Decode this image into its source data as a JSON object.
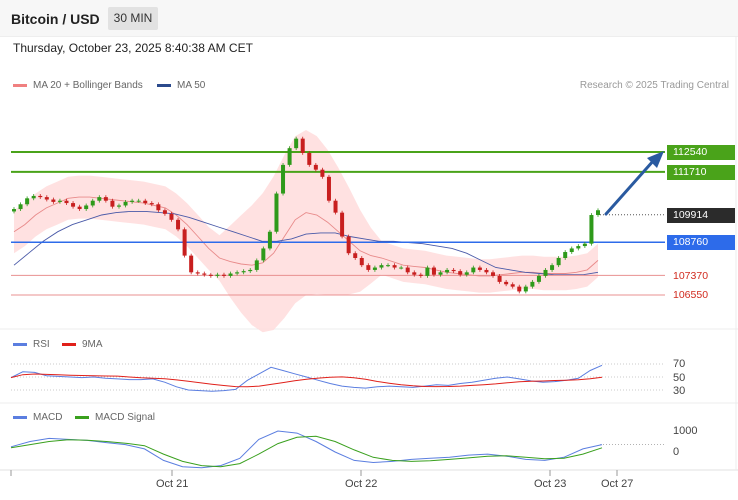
{
  "header": {
    "instrument": "Bitcoin / USD",
    "timeframe": "30 MIN",
    "datetime": "Thursday, October 23, 2025 8:40:38 AM CET"
  },
  "legend": {
    "ma20": "MA 20 + Bollinger Bands",
    "ma50": "MA 50",
    "research": "Research © 2025 Trading Central",
    "rsi": "RSI",
    "rsi_ma": "9MA",
    "macd": "MACD",
    "macd_signal": "MACD Signal"
  },
  "colors": {
    "bollinger_fill": "#ffdcdc",
    "ma20": "#e88a8a",
    "ma50": "#4a5aa8",
    "bull": "#2e9a1a",
    "bear": "#c81f1f",
    "resistance": "#4aa31a",
    "pivot": "#2d6bea",
    "support": "#e89090",
    "current": "#2b2b2b",
    "arrow": "#2a5aa0",
    "rsi": "#5b7ee0",
    "rsi_ma": "#e0201a",
    "macd": "#5b7ee0",
    "macd_signal": "#3aa01e"
  },
  "levels": {
    "r2": "112540",
    "r1": "111710",
    "current": "109914",
    "pivot": "108760",
    "s1": "107370",
    "s2": "106550"
  },
  "rsi_levels": [
    "70",
    "50",
    "30"
  ],
  "macd_levels": [
    "1000",
    "0"
  ],
  "x_labels": [
    "Oct 21",
    "Oct 22",
    "Oct 23",
    "Oct 27"
  ],
  "chart_data": {
    "type": "candlestick",
    "price_close": [
      110150,
      110350,
      110600,
      110700,
      110650,
      110550,
      110450,
      110500,
      110400,
      110250,
      110150,
      110300,
      110500,
      110650,
      110500,
      110250,
      110300,
      110450,
      110500,
      110500,
      110400,
      110350,
      110100,
      109950,
      109700,
      109300,
      108200,
      107500,
      107450,
      107400,
      107350,
      107400,
      107350,
      107450,
      107500,
      107550,
      107600,
      108000,
      108500,
      109200,
      110800,
      112000,
      112700,
      113100,
      112500,
      112000,
      111800,
      111500,
      110500,
      110000,
      109000,
      108300,
      108100,
      107800,
      107600,
      107700,
      107800,
      107800,
      107700,
      107700,
      107500,
      107400,
      107350,
      107700,
      107400,
      107500,
      107600,
      107550,
      107400,
      107500,
      107700,
      107600,
      107500,
      107350,
      107100,
      107000,
      106900,
      106700,
      106900,
      107100,
      107350,
      107600,
      107800,
      108100,
      108350,
      108500,
      108600,
      108700,
      109900,
      110100
    ],
    "ma20_approx": [
      109200,
      109500,
      109900,
      110200,
      110400,
      110600,
      110650,
      110650,
      110600,
      110550,
      110500,
      110450,
      110400,
      110300,
      110200,
      109900,
      109500,
      109000,
      108500,
      108100,
      107950,
      107850,
      107800,
      107900,
      108300,
      109000,
      109700,
      110000,
      109900,
      109600,
      109200,
      108800,
      108400,
      108200,
      108100,
      107950,
      107800,
      107750,
      107700,
      107600,
      107500,
      107450,
      107400,
      107350,
      107350,
      107400,
      107450,
      107500,
      107500,
      107450,
      107450,
      107450,
      107500,
      107600,
      108000
    ],
    "ma50_approx": [
      107800,
      108300,
      108800,
      109200,
      109500,
      109700,
      109900,
      110000,
      110050,
      110050,
      110000,
      109950,
      109800,
      109600,
      109400,
      109200,
      109000,
      108800,
      108800,
      108900,
      109100,
      109150,
      109150,
      109000,
      108900,
      108800,
      108800,
      108750,
      108700,
      108600,
      108500,
      108300,
      108000,
      107700,
      107600,
      107500,
      107450,
      107400,
      107400,
      107400,
      107500
    ],
    "rsi_range": [
      30,
      70
    ],
    "macd_range": [
      -300,
      1000
    ],
    "support_resistance": {
      "r2": 112540,
      "r1": 111710,
      "pivot": 108760,
      "s1": 107370,
      "s2": 106550
    },
    "last_price": 109914
  }
}
